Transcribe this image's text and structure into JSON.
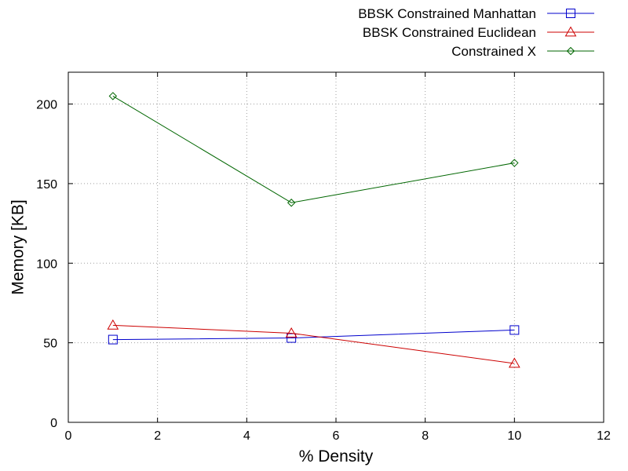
{
  "chart_data": {
    "type": "line",
    "title": "",
    "xlabel": "% Density",
    "ylabel": "Memory [KB]",
    "xlim": [
      0,
      12
    ],
    "ylim": [
      0,
      220
    ],
    "xticks": [
      0,
      2,
      4,
      6,
      8,
      10,
      12
    ],
    "yticks": [
      0,
      50,
      100,
      150,
      200
    ],
    "grid": true,
    "legend_position": "top-right",
    "series": [
      {
        "name": "BBSK Constrained Manhattan",
        "color": "#0000cc",
        "marker": "square",
        "x": [
          1,
          5,
          10
        ],
        "y": [
          52,
          53,
          58
        ]
      },
      {
        "name": "BBSK Constrained Euclidean",
        "color": "#cc0000",
        "marker": "triangle",
        "x": [
          1,
          5,
          10
        ],
        "y": [
          61,
          56,
          37
        ]
      },
      {
        "name": "Constrained X",
        "color": "#006600",
        "marker": "diamond",
        "x": [
          1,
          5,
          10
        ],
        "y": [
          205,
          138,
          163
        ]
      }
    ]
  }
}
